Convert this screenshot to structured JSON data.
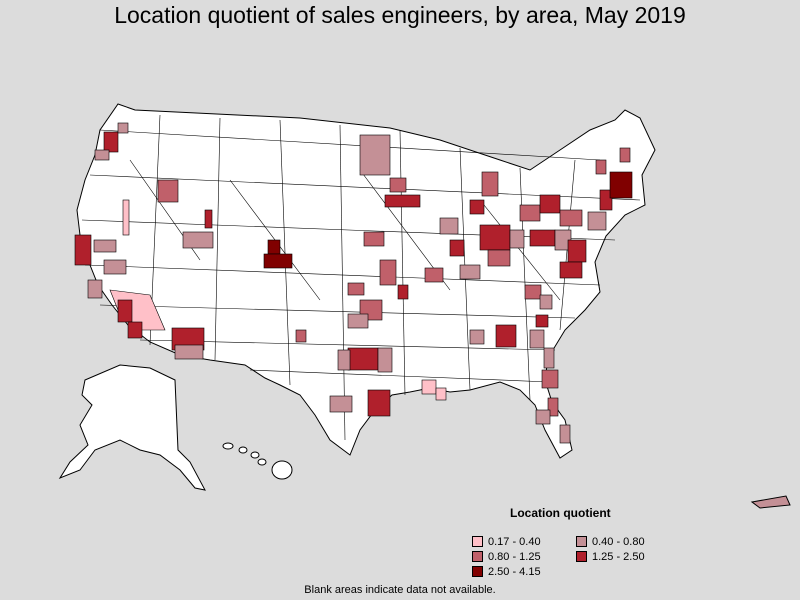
{
  "title": "Location quotient of sales engineers, by area, May 2019",
  "legend": {
    "title": "Location quotient",
    "items": [
      {
        "label": "0.17 - 0.40",
        "color": "#ffc0c8"
      },
      {
        "label": "0.40 - 0.80",
        "color": "#c49096"
      },
      {
        "label": "0.80 - 1.25",
        "color": "#c0606a"
      },
      {
        "label": "1.25 - 2.50",
        "color": "#b0202c"
      },
      {
        "label": "2.50 - 4.15",
        "color": "#800000"
      }
    ]
  },
  "footnote": "Blank areas indicate data not available.",
  "colors": {
    "background": "#dcdcdc",
    "land": "#ffffff",
    "borders": "#000000"
  }
}
